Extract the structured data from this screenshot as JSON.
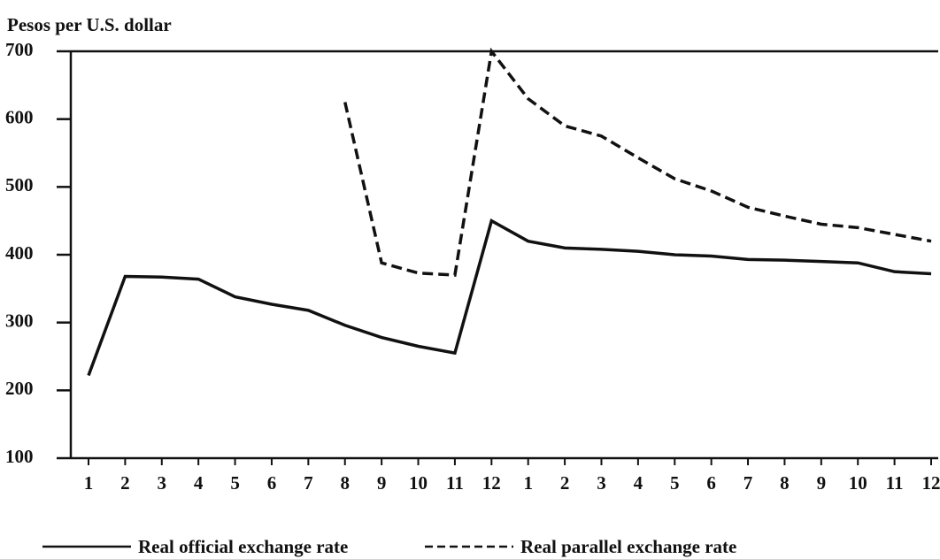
{
  "chart_data": {
    "type": "line",
    "y_label": "Pesos per U.S. dollar",
    "categories": [
      "1",
      "2",
      "3",
      "4",
      "5",
      "6",
      "7",
      "8",
      "9",
      "10",
      "11",
      "12",
      "1",
      "2",
      "3",
      "4",
      "5",
      "6",
      "7",
      "8",
      "9",
      "10",
      "11",
      "12"
    ],
    "series": [
      {
        "name": "Real official exchange rate",
        "color": "#111111",
        "dash": false,
        "values": [
          222,
          368,
          367,
          364,
          338,
          327,
          318,
          296,
          278,
          265,
          255,
          450,
          420,
          410,
          408,
          405,
          400,
          398,
          393,
          392,
          390,
          388,
          375,
          372
        ]
      },
      {
        "name": "Real parallel exchange rate",
        "color": "#111111",
        "dash": true,
        "values": [
          null,
          null,
          null,
          null,
          null,
          null,
          null,
          625,
          388,
          373,
          370,
          700,
          630,
          590,
          575,
          543,
          512,
          494,
          470,
          457,
          445,
          440,
          430,
          420
        ]
      }
    ],
    "ylim": [
      100,
      700
    ],
    "yticks": [
      100,
      200,
      300,
      400,
      500,
      600,
      700
    ],
    "grid": false
  }
}
